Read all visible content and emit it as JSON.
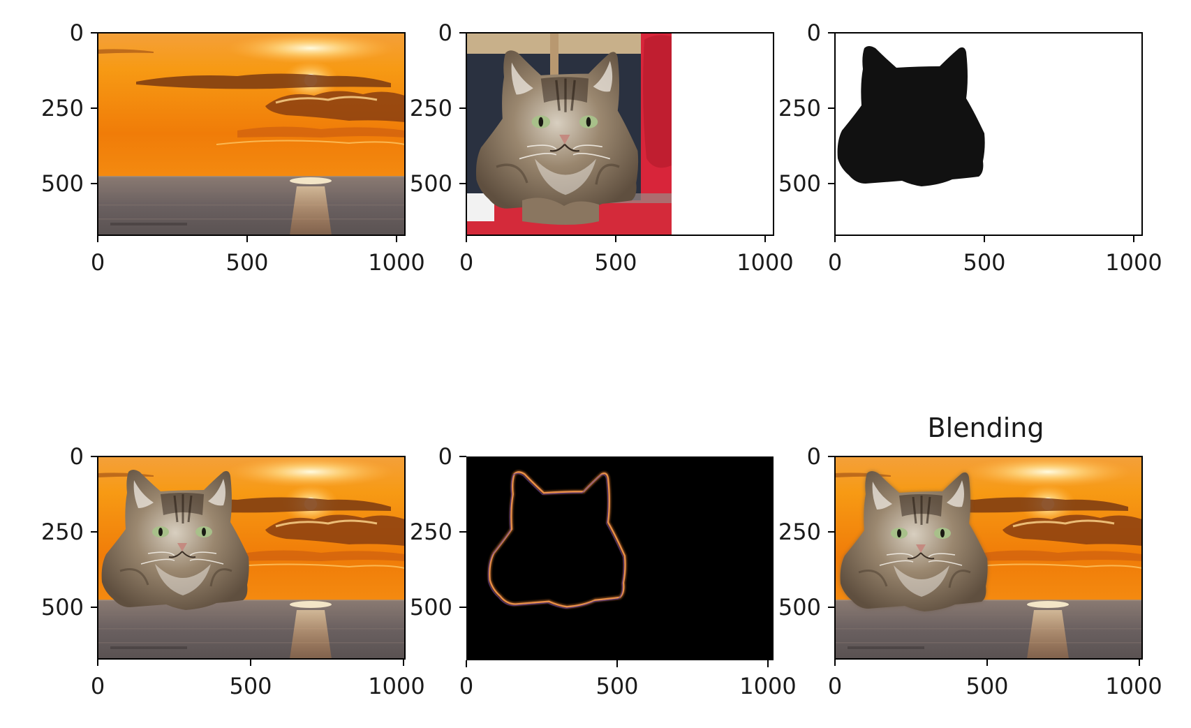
{
  "figure": {
    "panels": [
      {
        "name": "background-sunset",
        "title": "",
        "xticks": [
          "0",
          "500",
          "1000"
        ],
        "yticks": [
          "0",
          "250",
          "500"
        ]
      },
      {
        "name": "cat-photo",
        "title": "",
        "xticks": [
          "0",
          "500",
          "1000"
        ],
        "yticks": [
          "0",
          "250",
          "500"
        ]
      },
      {
        "name": "cat-mask",
        "title": "",
        "xticks": [
          "0",
          "500",
          "1000"
        ],
        "yticks": [
          "0",
          "250",
          "500"
        ]
      },
      {
        "name": "cut-paste-composite",
        "title": "",
        "xticks": [
          "0",
          "500",
          "1000"
        ],
        "yticks": [
          "0",
          "250",
          "500"
        ]
      },
      {
        "name": "mask-edge-difference",
        "title": "",
        "xticks": [
          "0",
          "500",
          "1000"
        ],
        "yticks": [
          "0",
          "250",
          "500"
        ]
      },
      {
        "name": "blended-composite",
        "title": "Blending",
        "xticks": [
          "0",
          "500",
          "1000"
        ],
        "yticks": [
          "0",
          "250",
          "500"
        ]
      }
    ],
    "colors": {
      "sky_top": "#f6a020",
      "sky_mid": "#f07c08",
      "sea": "#6e6462",
      "cat_fur": "#7d6a55",
      "chair_red": "#d8253a",
      "mask_black": "#111111",
      "edge_glow": "#d4762a"
    }
  }
}
